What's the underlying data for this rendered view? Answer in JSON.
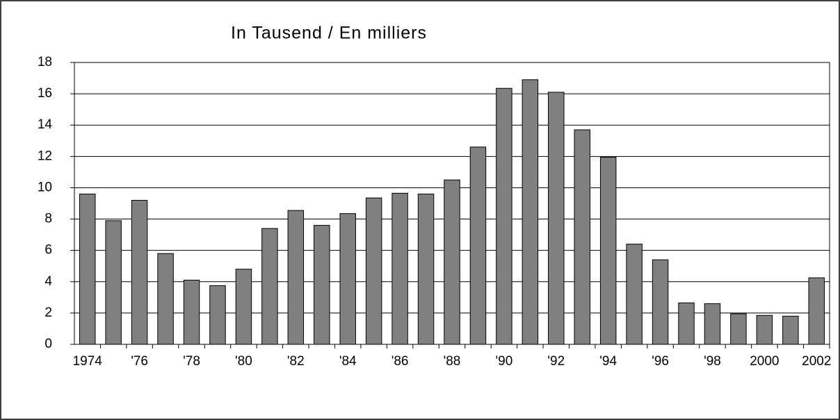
{
  "chart_data": {
    "type": "bar",
    "title": "In Tausend / En milliers",
    "categories": [
      "1974",
      null,
      "'76",
      null,
      "'78",
      null,
      "'80",
      null,
      "'82",
      null,
      "'84",
      null,
      "'86",
      null,
      "'88",
      null,
      "'90",
      null,
      "'92",
      null,
      "'94",
      null,
      "'96",
      null,
      "'98",
      null,
      "2000",
      null,
      "2002"
    ],
    "values": [
      9.6,
      7.9,
      9.2,
      5.8,
      4.1,
      3.75,
      4.8,
      7.4,
      8.55,
      7.6,
      8.35,
      9.35,
      9.65,
      9.6,
      10.5,
      12.6,
      16.35,
      16.9,
      16.1,
      13.7,
      11.95,
      6.4,
      5.4,
      2.65,
      2.6,
      1.95,
      1.85,
      1.8,
      4.25
    ],
    "color": "#808080",
    "ylim": [
      0,
      18
    ],
    "yticks": [
      0,
      2,
      4,
      6,
      8,
      10,
      12,
      14,
      16,
      18
    ],
    "grid": true
  }
}
